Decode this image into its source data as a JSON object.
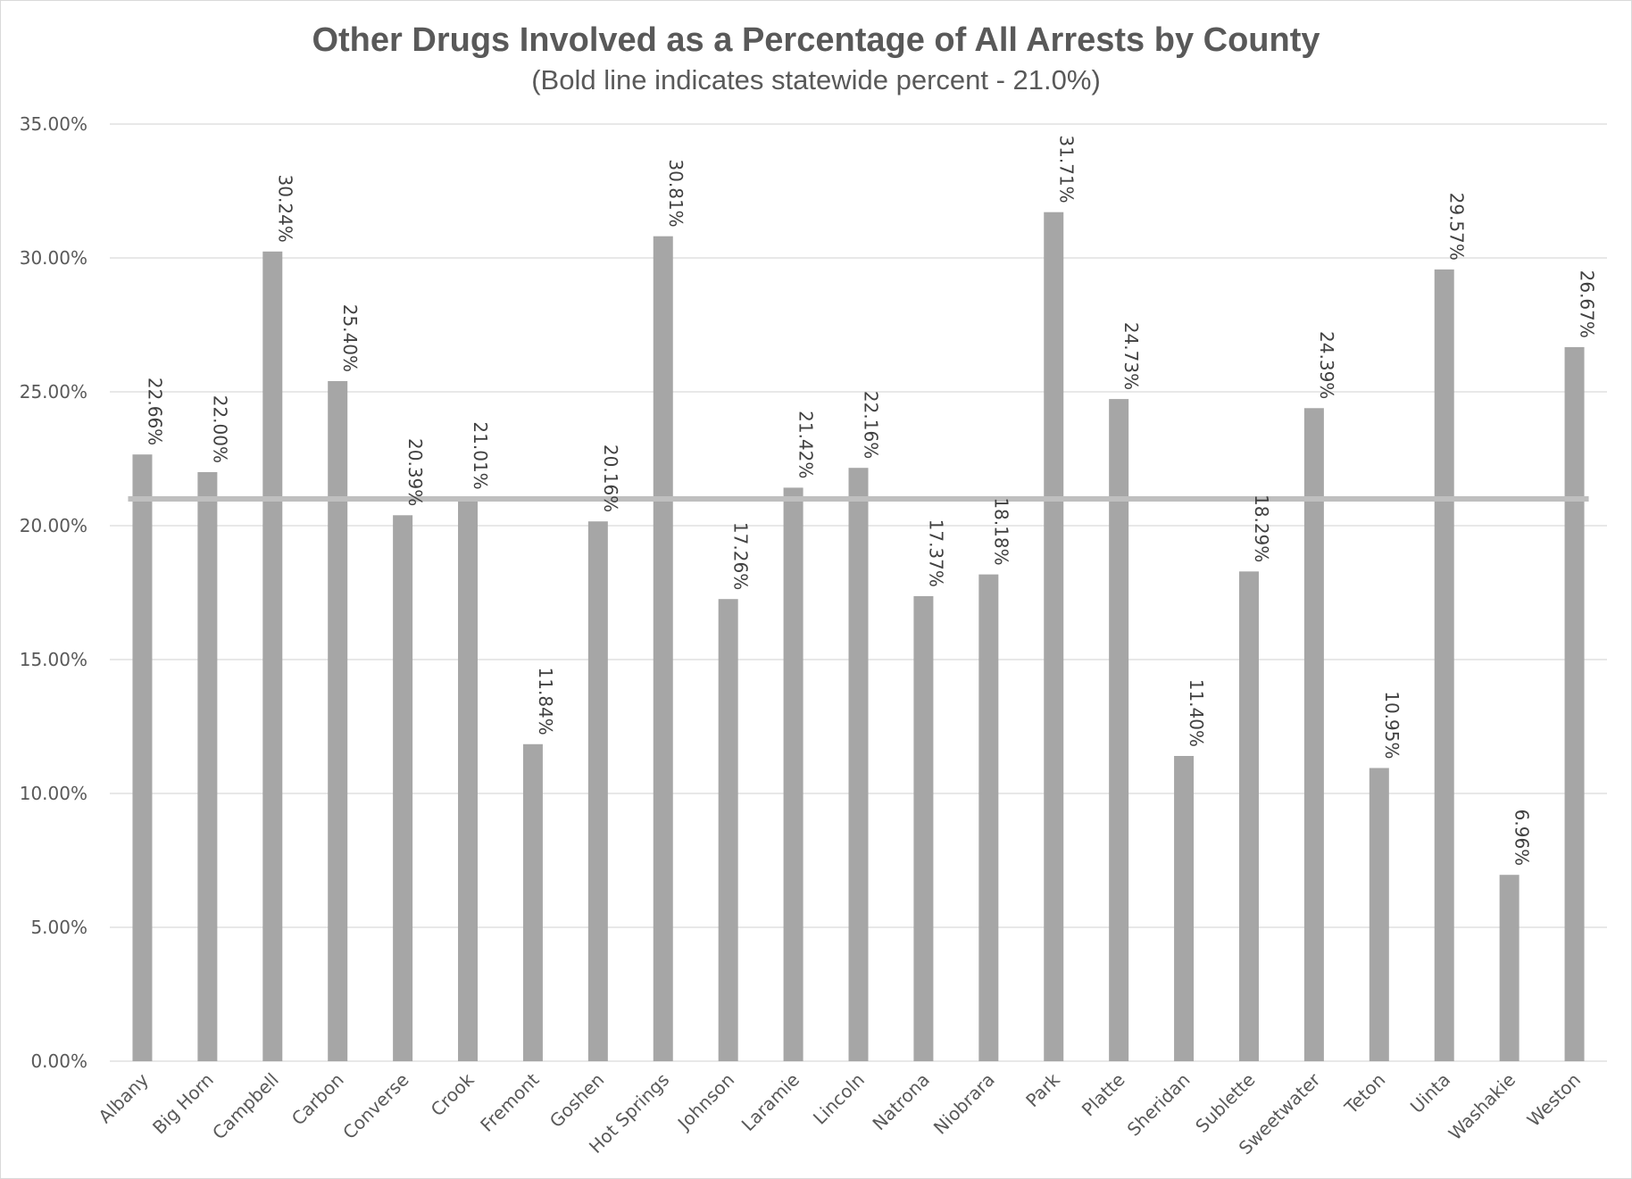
{
  "chart_data": {
    "type": "bar",
    "title": "Other Drugs Involved as a Percentage of All Arrests by County",
    "subtitle": "(Bold line indicates statewide percent - 21.0%)",
    "categories": [
      "Albany",
      "Big Horn",
      "Campbell",
      "Carbon",
      "Converse",
      "Crook",
      "Fremont",
      "Goshen",
      "Hot Springs",
      "Johnson",
      "Laramie",
      "Lincoln",
      "Natrona",
      "Niobrara",
      "Park",
      "Platte",
      "Sheridan",
      "Sublette",
      "Sweetwater",
      "Teton",
      "Uinta",
      "Washakie",
      "Weston"
    ],
    "values": [
      22.66,
      22.0,
      30.24,
      25.4,
      20.39,
      21.01,
      11.84,
      20.16,
      30.81,
      17.26,
      21.42,
      22.16,
      17.37,
      18.18,
      31.71,
      24.73,
      11.4,
      18.29,
      24.39,
      10.95,
      29.57,
      6.96,
      26.67
    ],
    "data_labels": [
      "22.66%",
      "22.00%",
      "30.24%",
      "25.40%",
      "20.39%",
      "21.01%",
      "11.84%",
      "20.16%",
      "30.81%",
      "17.26%",
      "21.42%",
      "22.16%",
      "17.37%",
      "18.18%",
      "31.71%",
      "24.73%",
      "11.40%",
      "18.29%",
      "24.39%",
      "10.95%",
      "29.57%",
      "6.96%",
      "26.67%"
    ],
    "reference_line": {
      "value": 21.0
    },
    "ylim": [
      0,
      35
    ],
    "yticks": [
      0,
      5,
      10,
      15,
      20,
      25,
      30,
      35
    ],
    "ytick_labels": [
      "0.00%",
      "5.00%",
      "10.00%",
      "15.00%",
      "20.00%",
      "25.00%",
      "30.00%",
      "35.00%"
    ],
    "xlabel": "",
    "ylabel": "",
    "grid": true,
    "colors": {
      "bar": "#a6a6a6",
      "reference_line": "#bfbfbf",
      "grid": "#d9d9d9"
    }
  }
}
